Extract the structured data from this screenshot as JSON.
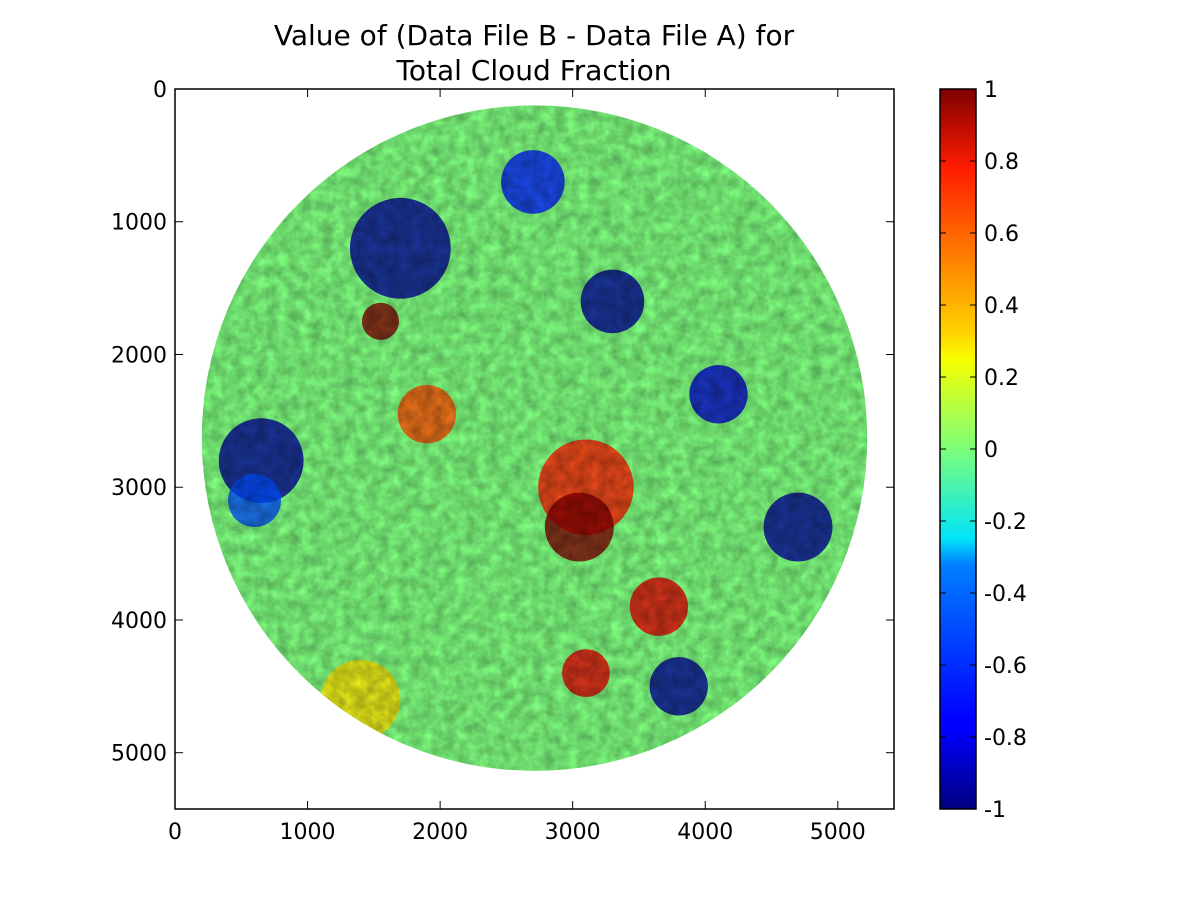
{
  "chart_data": {
    "type": "heatmap",
    "title": "Value of (Data File B - Data File A) for\nTotal Cloud Fraction",
    "title_lines": [
      "Value of (Data File B - Data File A) for",
      "Total Cloud Fraction"
    ],
    "xlabel": "",
    "ylabel": "",
    "xlim": [
      0,
      5424
    ],
    "ylim": [
      5424,
      0
    ],
    "x_ticks": [
      0,
      1000,
      2000,
      3000,
      4000,
      5000
    ],
    "y_ticks": [
      0,
      1000,
      2000,
      3000,
      4000,
      5000
    ],
    "x_tick_labels": [
      "0",
      "1000",
      "2000",
      "3000",
      "4000",
      "5000"
    ],
    "y_tick_labels": [
      "0",
      "1000",
      "2000",
      "3000",
      "4000",
      "5000"
    ],
    "disk": {
      "center": [
        2712,
        2630
      ],
      "radius": 2510
    },
    "colorbar": {
      "colormap": "jet",
      "vmin": -1,
      "vmax": 1,
      "ticks": [
        1,
        0.8,
        0.6,
        0.4,
        0.2,
        0,
        -0.2,
        -0.4,
        -0.6,
        -0.8,
        -1
      ],
      "tick_labels": [
        "1",
        "0.8",
        "0.6",
        "0.4",
        "0.2",
        "0",
        "-0.2",
        "-0.4",
        "-0.6",
        "-0.8",
        "-1"
      ]
    },
    "background_value": 0,
    "regions": [
      {
        "cx": 650,
        "cy": 2800,
        "r": 320,
        "value": -0.95
      },
      {
        "cx": 1700,
        "cy": 1200,
        "r": 380,
        "value": -0.95
      },
      {
        "cx": 1550,
        "cy": 1750,
        "r": 140,
        "value": 1.0
      },
      {
        "cx": 3100,
        "cy": 3000,
        "r": 360,
        "value": 0.7
      },
      {
        "cx": 3050,
        "cy": 3300,
        "r": 260,
        "value": 1.0
      },
      {
        "cx": 3650,
        "cy": 3900,
        "r": 220,
        "value": 0.8
      },
      {
        "cx": 3100,
        "cy": 4400,
        "r": 180,
        "value": 0.8
      },
      {
        "cx": 4700,
        "cy": 3300,
        "r": 260,
        "value": -0.95
      },
      {
        "cx": 3800,
        "cy": 4500,
        "r": 220,
        "value": -0.95
      },
      {
        "cx": 3300,
        "cy": 1600,
        "r": 240,
        "value": -0.95
      },
      {
        "cx": 4100,
        "cy": 2300,
        "r": 220,
        "value": -0.85
      },
      {
        "cx": 1900,
        "cy": 2450,
        "r": 220,
        "value": 0.6
      },
      {
        "cx": 1400,
        "cy": 4600,
        "r": 300,
        "value": 0.3
      },
      {
        "cx": 600,
        "cy": 3100,
        "r": 200,
        "value": -0.6
      },
      {
        "cx": 2700,
        "cy": 700,
        "r": 240,
        "value": -0.7
      }
    ]
  }
}
